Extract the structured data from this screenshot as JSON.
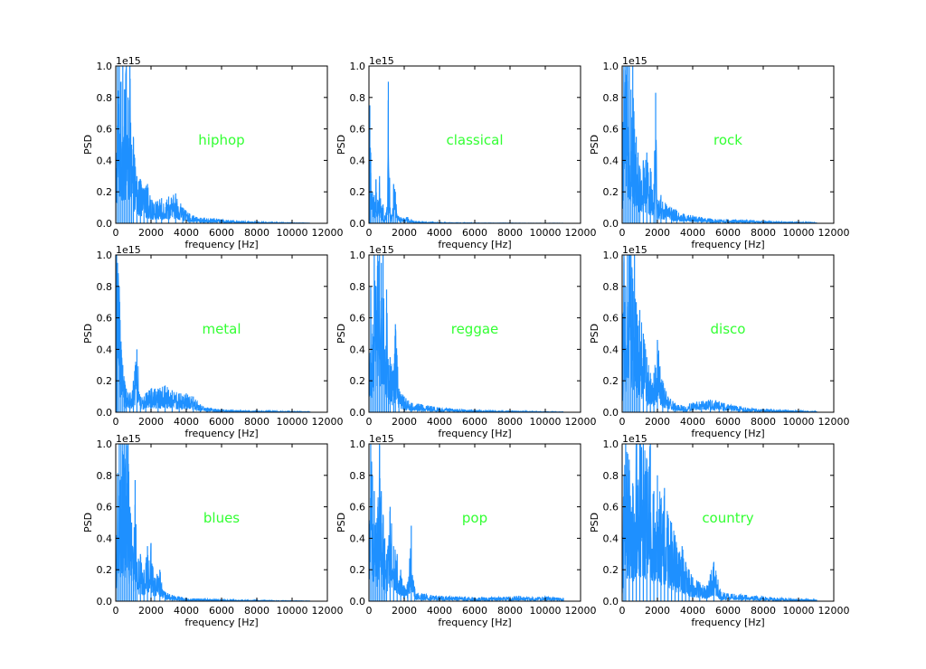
{
  "chart_data": [
    {
      "type": "line",
      "genre_label": "hiphop",
      "xlabel": "frequency [Hz]",
      "ylabel": "PSD",
      "offset_text": "1e15",
      "xlim": [
        0,
        12000
      ],
      "ylim": [
        0.0,
        1.0
      ],
      "xticks": [
        "0",
        "2000",
        "4000",
        "6000",
        "8000",
        "10000",
        "12000"
      ],
      "yticks": [
        "0.0",
        "0.2",
        "0.4",
        "0.6",
        "0.8",
        "1.0"
      ],
      "color": "#1e90ff",
      "series": [
        {
          "x": [
            0,
            100,
            200,
            300,
            400,
            500,
            600,
            700,
            800,
            900,
            1000,
            1200,
            1400,
            1600,
            1800,
            2000,
            2300,
            2600,
            3000,
            3400,
            3800,
            4200,
            4600,
            5000,
            5500,
            6000,
            6500,
            7000,
            7500,
            8000,
            8500,
            9000,
            9500,
            10000,
            10500,
            11025
          ],
          "y": [
            0.3,
            1.0,
            1.0,
            0.9,
            1.0,
            0.85,
            1.0,
            0.8,
            1.0,
            0.5,
            0.55,
            0.3,
            0.28,
            0.22,
            0.25,
            0.15,
            0.14,
            0.16,
            0.17,
            0.19,
            0.1,
            0.06,
            0.04,
            0.035,
            0.03,
            0.025,
            0.02,
            0.015,
            0.012,
            0.01,
            0.008,
            0.006,
            0.005,
            0.004,
            0.003,
            0.002
          ]
        }
      ]
    },
    {
      "type": "line",
      "genre_label": "classical",
      "xlabel": "frequency [Hz]",
      "ylabel": "PSD",
      "offset_text": "1e15",
      "xlim": [
        0,
        12000
      ],
      "ylim": [
        0.0,
        1.0
      ],
      "xticks": [
        "0",
        "2000",
        "4000",
        "6000",
        "8000",
        "10000",
        "12000"
      ],
      "yticks": [
        "0.0",
        "0.2",
        "0.4",
        "0.6",
        "0.8",
        "1.0"
      ],
      "color": "#1e90ff",
      "series": [
        {
          "x": [
            0,
            50,
            100,
            200,
            300,
            400,
            500,
            600,
            700,
            800,
            900,
            1000,
            1100,
            1200,
            1300,
            1400,
            1500,
            1600,
            1800,
            2000,
            2200,
            2400,
            3000,
            4000,
            5000,
            6000,
            7000,
            8000,
            9000,
            10000,
            11025
          ],
          "y": [
            0.3,
            0.75,
            0.45,
            0.2,
            0.18,
            0.28,
            0.15,
            0.3,
            0.1,
            0.12,
            0.05,
            0.08,
            0.9,
            0.1,
            0.05,
            0.25,
            0.2,
            0.05,
            0.04,
            0.03,
            0.04,
            0.02,
            0.01,
            0.005,
            0.004,
            0.003,
            0.002,
            0.002,
            0.001,
            0.001,
            0.001
          ]
        }
      ]
    },
    {
      "type": "line",
      "genre_label": "rock",
      "xlabel": "frequency [Hz]",
      "ylabel": "PSD",
      "offset_text": "1e15",
      "xlim": [
        0,
        12000
      ],
      "ylim": [
        0.0,
        1.0
      ],
      "xticks": [
        "0",
        "2000",
        "4000",
        "6000",
        "8000",
        "10000",
        "12000"
      ],
      "yticks": [
        "0.0",
        "0.2",
        "0.4",
        "0.6",
        "0.8",
        "1.0"
      ],
      "color": "#1e90ff",
      "series": [
        {
          "x": [
            0,
            100,
            200,
            300,
            400,
            500,
            600,
            700,
            800,
            900,
            1000,
            1200,
            1400,
            1600,
            1800,
            1900,
            2000,
            2200,
            2500,
            2800,
            3100,
            3500,
            4000,
            4500,
            5000,
            6000,
            7000,
            8000,
            9000,
            10000,
            11025
          ],
          "y": [
            0.4,
            1.0,
            1.0,
            1.0,
            1.0,
            0.85,
            1.0,
            0.6,
            0.55,
            0.45,
            0.35,
            0.4,
            0.45,
            0.35,
            0.25,
            0.83,
            0.15,
            0.18,
            0.12,
            0.1,
            0.08,
            0.06,
            0.05,
            0.04,
            0.03,
            0.025,
            0.02,
            0.015,
            0.01,
            0.008,
            0.005
          ]
        }
      ]
    },
    {
      "type": "line",
      "genre_label": "metal",
      "xlabel": "frequency [Hz]",
      "ylabel": "PSD",
      "offset_text": "1e15",
      "xlim": [
        0,
        12000
      ],
      "ylim": [
        0.0,
        1.0
      ],
      "xticks": [
        "0",
        "2000",
        "4000",
        "6000",
        "8000",
        "10000",
        "12000"
      ],
      "yticks": [
        "0.0",
        "0.2",
        "0.4",
        "0.6",
        "0.8",
        "1.0"
      ],
      "color": "#1e90ff",
      "series": [
        {
          "x": [
            0,
            50,
            100,
            200,
            300,
            400,
            500,
            600,
            800,
            1000,
            1200,
            1400,
            1700,
            2000,
            2400,
            2800,
            3200,
            3600,
            4000,
            4400,
            4800,
            5200,
            5800,
            6500,
            7200,
            8000,
            9000,
            10000,
            11025
          ],
          "y": [
            0.3,
            1.0,
            0.95,
            0.8,
            0.45,
            0.3,
            0.2,
            0.15,
            0.12,
            0.2,
            0.4,
            0.1,
            0.12,
            0.15,
            0.15,
            0.17,
            0.14,
            0.12,
            0.12,
            0.1,
            0.05,
            0.03,
            0.02,
            0.015,
            0.012,
            0.01,
            0.008,
            0.006,
            0.004
          ]
        }
      ]
    },
    {
      "type": "line",
      "genre_label": "reggae",
      "xlabel": "frequency [Hz]",
      "ylabel": "PSD",
      "offset_text": "1e15",
      "xlim": [
        0,
        12000
      ],
      "ylim": [
        0.0,
        1.0
      ],
      "xticks": [
        "0",
        "2000",
        "4000",
        "6000",
        "8000",
        "10000",
        "12000"
      ],
      "yticks": [
        "0.0",
        "0.2",
        "0.4",
        "0.6",
        "0.8",
        "1.0"
      ],
      "color": "#1e90ff",
      "series": [
        {
          "x": [
            0,
            100,
            200,
            300,
            400,
            500,
            600,
            700,
            800,
            900,
            1000,
            1100,
            1200,
            1400,
            1500,
            1700,
            2000,
            2400,
            3000,
            3500,
            4000,
            5000,
            6000,
            7000,
            8000,
            9000,
            10000,
            11025
          ],
          "y": [
            0.2,
            0.8,
            0.5,
            1.0,
            0.8,
            1.0,
            1.0,
            0.95,
            1.0,
            0.4,
            0.78,
            0.3,
            0.35,
            0.25,
            0.56,
            0.15,
            0.1,
            0.06,
            0.05,
            0.04,
            0.03,
            0.02,
            0.015,
            0.01,
            0.008,
            0.006,
            0.004,
            0.003
          ]
        }
      ]
    },
    {
      "type": "line",
      "genre_label": "disco",
      "xlabel": "frequency [Hz]",
      "ylabel": "PSD",
      "offset_text": "1e15",
      "xlim": [
        0,
        12000
      ],
      "ylim": [
        0.0,
        1.0
      ],
      "xticks": [
        "0",
        "2000",
        "4000",
        "6000",
        "8000",
        "10000",
        "12000"
      ],
      "yticks": [
        "0.0",
        "0.2",
        "0.4",
        "0.6",
        "0.8",
        "1.0"
      ],
      "color": "#1e90ff",
      "series": [
        {
          "x": [
            0,
            100,
            200,
            300,
            400,
            500,
            600,
            700,
            800,
            900,
            1000,
            1200,
            1400,
            1600,
            1800,
            2000,
            2300,
            2600,
            3000,
            3500,
            4000,
            4500,
            5000,
            5500,
            6000,
            7000,
            8000,
            9000,
            10000,
            11025
          ],
          "y": [
            0.3,
            1.0,
            0.8,
            1.0,
            1.0,
            1.0,
            0.85,
            1.0,
            0.7,
            0.55,
            0.65,
            0.5,
            0.35,
            0.25,
            0.25,
            0.46,
            0.2,
            0.1,
            0.06,
            0.04,
            0.06,
            0.07,
            0.08,
            0.07,
            0.05,
            0.03,
            0.02,
            0.015,
            0.01,
            0.006
          ]
        }
      ]
    },
    {
      "type": "line",
      "genre_label": "blues",
      "xlabel": "frequency [Hz]",
      "ylabel": "PSD",
      "offset_text": "1e15",
      "xlim": [
        0,
        12000
      ],
      "ylim": [
        0.0,
        1.0
      ],
      "xticks": [
        "0",
        "2000",
        "4000",
        "6000",
        "8000",
        "10000",
        "12000"
      ],
      "yticks": [
        "0.0",
        "0.2",
        "0.4",
        "0.6",
        "0.8",
        "1.0"
      ],
      "color": "#1e90ff",
      "series": [
        {
          "x": [
            0,
            100,
            200,
            300,
            400,
            500,
            600,
            700,
            800,
            900,
            1000,
            1100,
            1200,
            1400,
            1600,
            1800,
            2000,
            2200,
            2500,
            2800,
            3200,
            3600,
            4000,
            5000,
            6000,
            7000,
            8000,
            9000,
            10000,
            11025
          ],
          "y": [
            0.3,
            0.8,
            1.0,
            1.0,
            1.0,
            1.0,
            1.0,
            1.0,
            0.6,
            0.5,
            0.3,
            0.77,
            0.25,
            0.3,
            0.2,
            0.35,
            0.37,
            0.15,
            0.2,
            0.06,
            0.04,
            0.03,
            0.02,
            0.015,
            0.01,
            0.008,
            0.006,
            0.004,
            0.003,
            0.002
          ]
        }
      ]
    },
    {
      "type": "line",
      "genre_label": "pop",
      "xlabel": "frequency [Hz]",
      "ylabel": "PSD",
      "offset_text": "1e15",
      "xlim": [
        0,
        12000
      ],
      "ylim": [
        0.0,
        1.0
      ],
      "xticks": [
        "0",
        "2000",
        "4000",
        "6000",
        "8000",
        "10000",
        "12000"
      ],
      "yticks": [
        "0.0",
        "0.2",
        "0.4",
        "0.6",
        "0.8",
        "1.0"
      ],
      "color": "#1e90ff",
      "series": [
        {
          "x": [
            0,
            100,
            200,
            300,
            400,
            500,
            600,
            700,
            800,
            900,
            1000,
            1200,
            1400,
            1600,
            1800,
            2000,
            2200,
            2400,
            2600,
            3000,
            3500,
            4000,
            5000,
            6000,
            7000,
            8000,
            8500,
            9000,
            10000,
            10500,
            11025
          ],
          "y": [
            0.3,
            1.0,
            0.8,
            0.7,
            0.5,
            0.6,
            1.0,
            0.7,
            0.55,
            0.4,
            0.3,
            0.6,
            0.35,
            0.3,
            0.2,
            0.1,
            0.12,
            0.48,
            0.08,
            0.05,
            0.04,
            0.035,
            0.03,
            0.025,
            0.025,
            0.03,
            0.035,
            0.025,
            0.03,
            0.025,
            0.02
          ]
        }
      ]
    },
    {
      "type": "line",
      "genre_label": "country",
      "xlabel": "frequency [Hz]",
      "ylabel": "PSD",
      "offset_text": "1e15",
      "xlim": [
        0,
        12000
      ],
      "ylim": [
        0.0,
        1.0
      ],
      "xticks": [
        "0",
        "2000",
        "4000",
        "6000",
        "8000",
        "10000",
        "12000"
      ],
      "yticks": [
        "0.0",
        "0.2",
        "0.4",
        "0.6",
        "0.8",
        "1.0"
      ],
      "color": "#1e90ff",
      "series": [
        {
          "x": [
            0,
            100,
            200,
            400,
            600,
            800,
            1000,
            1200,
            1400,
            1600,
            1800,
            2000,
            2200,
            2400,
            2600,
            2800,
            3000,
            3200,
            3400,
            3600,
            3800,
            4000,
            4400,
            4800,
            5200,
            5600,
            6000,
            7000,
            8000,
            9000,
            10000,
            11025
          ],
          "y": [
            0.3,
            0.8,
            1.0,
            0.9,
            0.75,
            1.0,
            1.0,
            1.0,
            0.9,
            1.0,
            0.7,
            0.8,
            0.65,
            0.72,
            0.55,
            0.5,
            0.42,
            0.3,
            0.35,
            0.25,
            0.2,
            0.15,
            0.12,
            0.1,
            0.25,
            0.06,
            0.05,
            0.04,
            0.03,
            0.02,
            0.015,
            0.01
          ]
        }
      ]
    }
  ]
}
